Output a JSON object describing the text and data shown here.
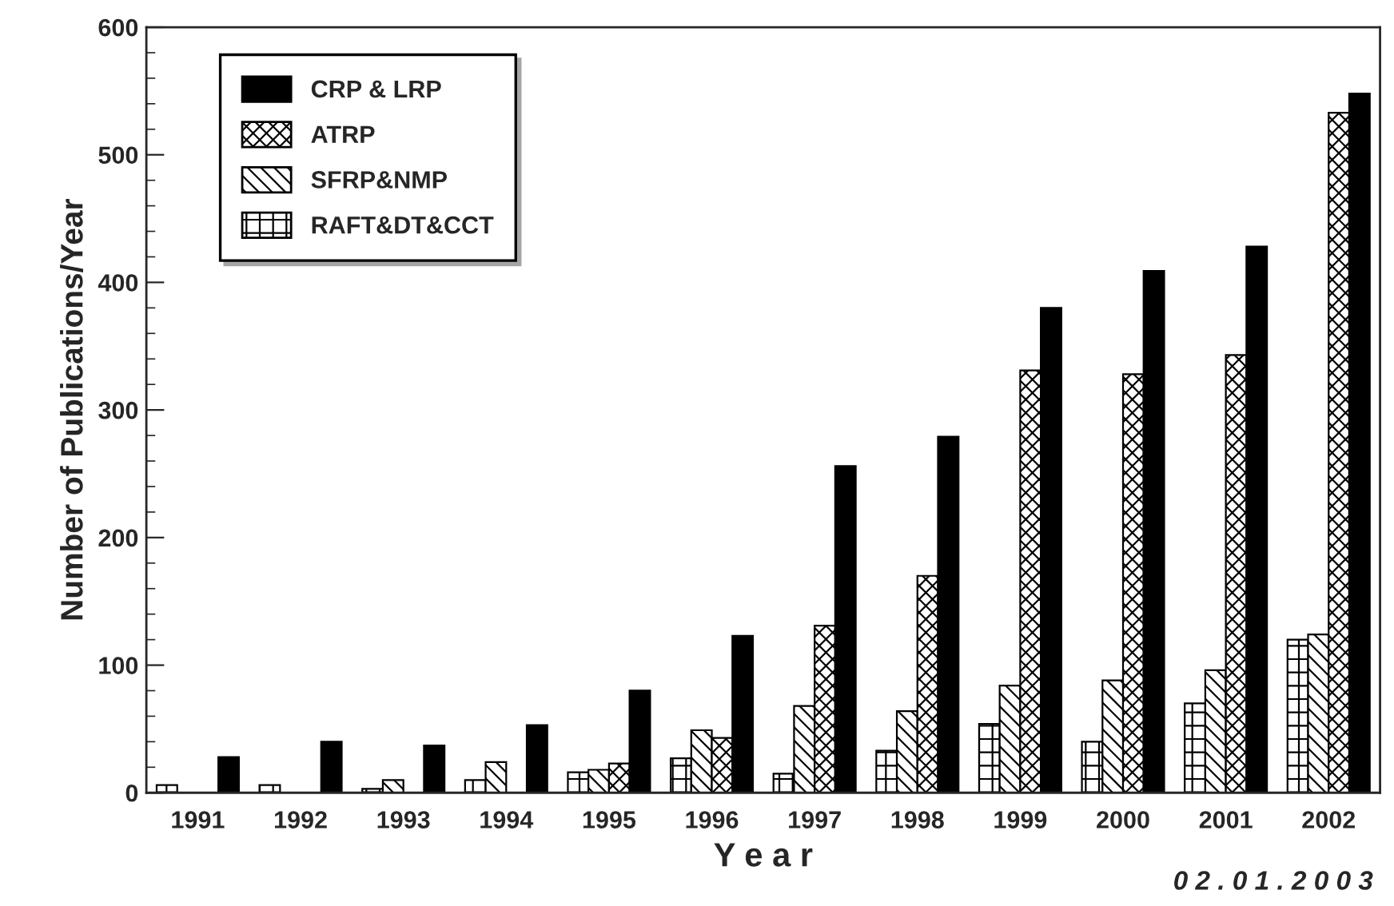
{
  "chart_data": {
    "type": "bar",
    "categories": [
      "1991",
      "1992",
      "1993",
      "1994",
      "1995",
      "1996",
      "1997",
      "1998",
      "1999",
      "2000",
      "2001",
      "2002"
    ],
    "series": [
      {
        "name": "RAFT&DT&CCT",
        "color": "#000000",
        "values": [
          6,
          6,
          3,
          10,
          16,
          27,
          15,
          33,
          54,
          40,
          70,
          120
        ]
      },
      {
        "name": "SFRP&NMP",
        "color": "#000000",
        "values": [
          null,
          null,
          10,
          24,
          18,
          49,
          68,
          64,
          84,
          88,
          96,
          124
        ]
      },
      {
        "name": "ATRP",
        "color": "#000000",
        "values": [
          null,
          null,
          null,
          null,
          23,
          43,
          131,
          170,
          331,
          328,
          343,
          533
        ]
      },
      {
        "name": "CRP & LRP",
        "color": "#000000",
        "values": [
          28,
          40,
          37,
          53,
          80,
          123,
          256,
          279,
          380,
          409,
          428,
          548
        ]
      }
    ],
    "xlabel": "Y e a r",
    "ylabel": "Number of Publications/Year",
    "ylim": [
      0,
      600
    ],
    "yticks": [
      0,
      100,
      200,
      300,
      400,
      500,
      600
    ],
    "annotations": [
      "0 2 . 0 1 . 2 0 0 3"
    ],
    "grid": false,
    "legend": "top left"
  }
}
